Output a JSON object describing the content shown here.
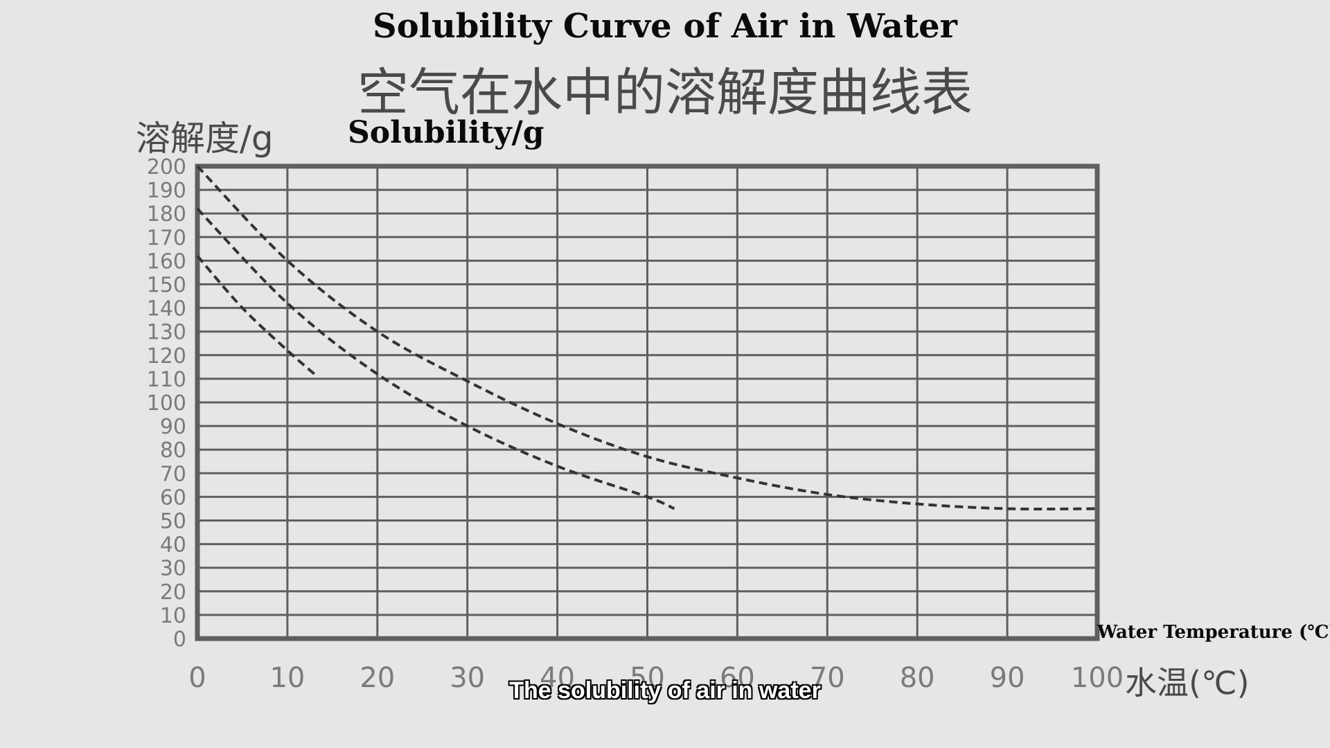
{
  "titles": {
    "en": "Solubility Curve of Air in Water",
    "zh": "空气在水中的溶解度曲线表"
  },
  "axes": {
    "y_label_zh": "溶解度/g",
    "y_label_en": "Solubility/g",
    "x_label_en": "Water Temperature (℃)",
    "x_label_zh": "水温(℃)"
  },
  "caption": "The solubility of air in water",
  "colors": {
    "background": "#e6e6e6",
    "grid": "#5f5f5f",
    "tick_labels": "#7a7a7a",
    "curves": "#333333"
  },
  "chart_data": {
    "type": "line",
    "title": "Solubility Curve of Air in Water",
    "xlabel": "Water Temperature (℃)",
    "ylabel": "Solubility/g",
    "xlim": [
      0,
      100
    ],
    "ylim": [
      0,
      200
    ],
    "x_ticks": [
      0,
      10,
      20,
      30,
      40,
      50,
      60,
      70,
      80,
      90,
      100
    ],
    "y_ticks": [
      0,
      10,
      20,
      30,
      40,
      50,
      60,
      70,
      80,
      90,
      100,
      110,
      120,
      130,
      140,
      150,
      160,
      170,
      180,
      190,
      200
    ],
    "grid": true,
    "line_style": "dashed",
    "series": [
      {
        "x": [
          0,
          10,
          20,
          30,
          40,
          50,
          60,
          70,
          80,
          90,
          100
        ],
        "y": [
          200,
          160,
          130,
          109,
          91,
          77,
          68,
          61,
          57,
          55,
          55
        ]
      },
      {
        "x": [
          0,
          10,
          20,
          30,
          40,
          50,
          53
        ],
        "y": [
          182,
          142,
          112,
          90,
          73,
          60,
          55
        ]
      },
      {
        "x": [
          0,
          5,
          10,
          13
        ],
        "y": [
          162,
          140,
          122,
          112
        ]
      }
    ]
  }
}
